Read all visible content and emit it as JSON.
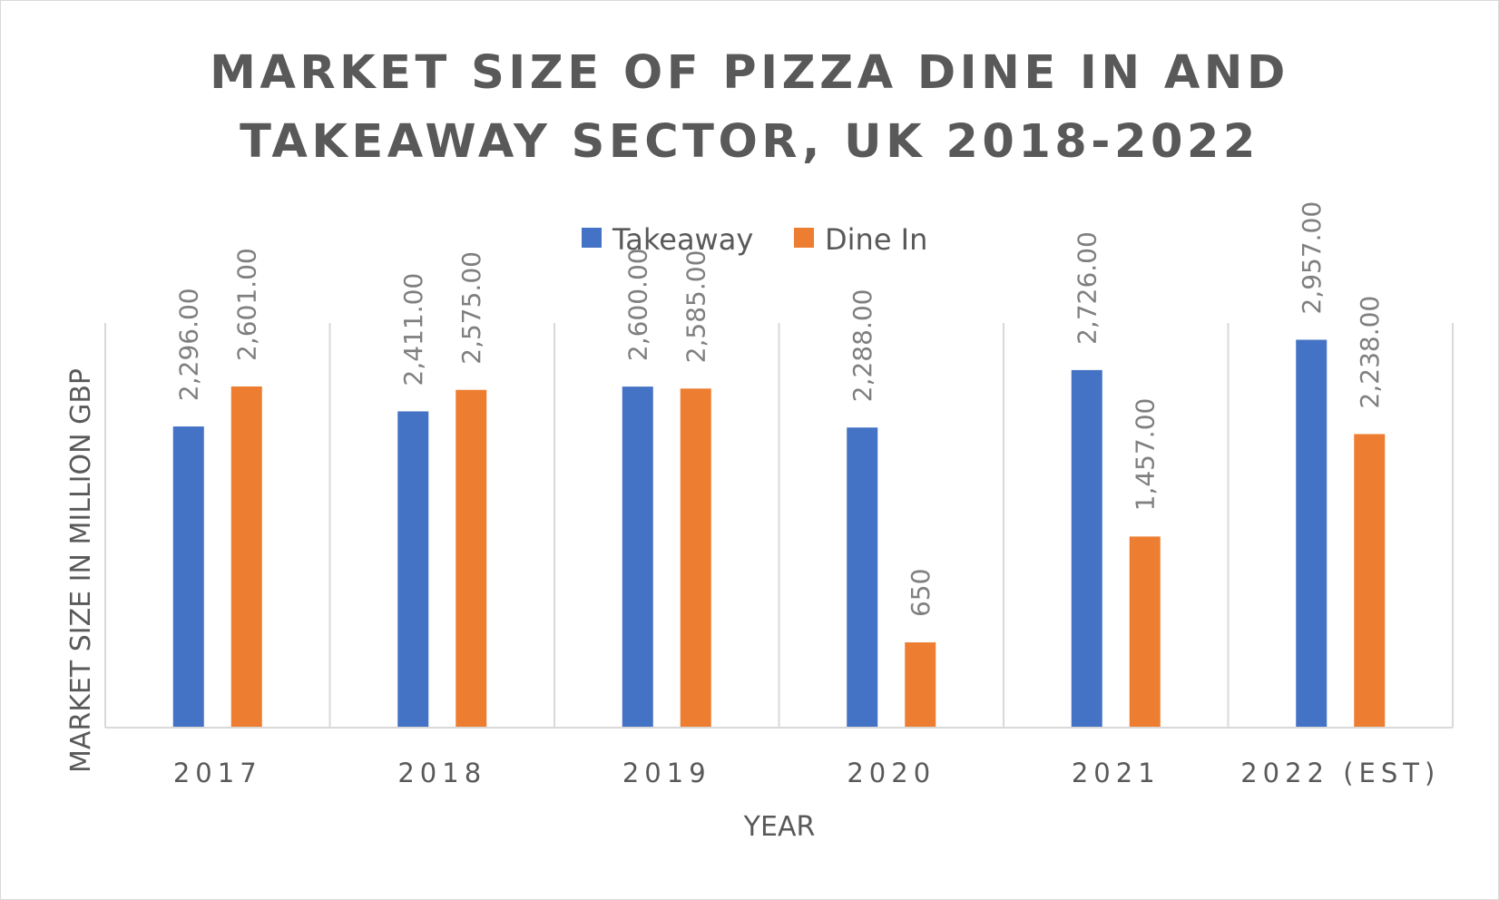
{
  "chart_data": {
    "type": "bar",
    "title_lines": [
      "MARKET SIZE OF PIZZA DINE IN AND",
      "TAKEAWAY SECTOR, UK 2018-2022"
    ],
    "categories": [
      "2017",
      "2018",
      "2019",
      "2020",
      "2021",
      "2022 (EST)"
    ],
    "series": [
      {
        "name": "Takeaway",
        "color": "#4472c4",
        "values": [
          2296,
          2411,
          2600,
          2288,
          2726,
          2957
        ],
        "labels": [
          "2,296.00",
          "2,411.00",
          "2,600.00",
          "2,288.00",
          "2,726.00",
          "2,957.00"
        ]
      },
      {
        "name": "Dine In",
        "color": "#ed7d31",
        "values": [
          2601,
          2575,
          2585,
          650,
          1457,
          2238
        ],
        "labels": [
          "2,601.00",
          "2,575.00",
          "2,585.00",
          "650",
          "1,457.00",
          "2,238.00"
        ]
      }
    ],
    "xlabel": "YEAR",
    "ylabel": "MARKET SIZE IN MILLION GBP",
    "ylim": [
      0,
      3500
    ],
    "legend_position": "top",
    "grid": "vertical category separators"
  }
}
